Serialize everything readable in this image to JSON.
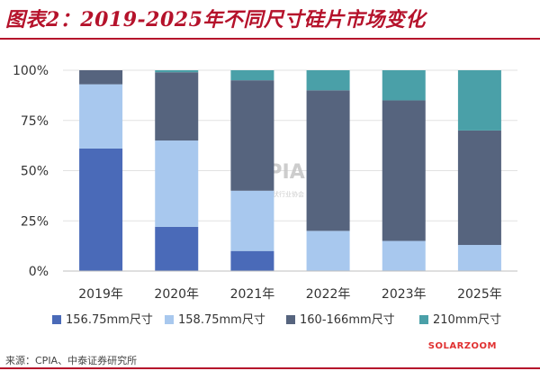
{
  "header": {
    "title": "图表2：2019-2025年不同尺寸硅片市场变化"
  },
  "footer": {
    "source": "来源：CPIA、中泰证券研究所",
    "brand": "SOLARZOOM"
  },
  "watermark": {
    "logo": "CPIA",
    "text": "中国光伏行业协会"
  },
  "chart_data": {
    "type": "bar",
    "stacked": true,
    "categories": [
      "2019年",
      "2020年",
      "2021年",
      "2022年",
      "2023年",
      "2025年"
    ],
    "ylim": [
      0,
      100
    ],
    "yticks": [
      0,
      25,
      50,
      75,
      100
    ],
    "ytick_labels": [
      "0%",
      "25%",
      "50%",
      "75%",
      "100%"
    ],
    "legend_position": "bottom",
    "grid": true,
    "series": [
      {
        "name": "156.75mm尺寸",
        "color": "#4a6ab8",
        "values": [
          61,
          22,
          10,
          0,
          0,
          0
        ]
      },
      {
        "name": "158.75mm尺寸",
        "color": "#a8c8ee",
        "values": [
          32,
          43,
          30,
          20,
          15,
          13
        ]
      },
      {
        "name": "160-166mm尺寸",
        "color": "#56647e",
        "values": [
          7,
          34,
          55,
          70,
          70,
          57
        ]
      },
      {
        "name": "210mm尺寸",
        "color": "#4aa0a8",
        "values": [
          0,
          1,
          5,
          10,
          15,
          30
        ]
      }
    ]
  }
}
